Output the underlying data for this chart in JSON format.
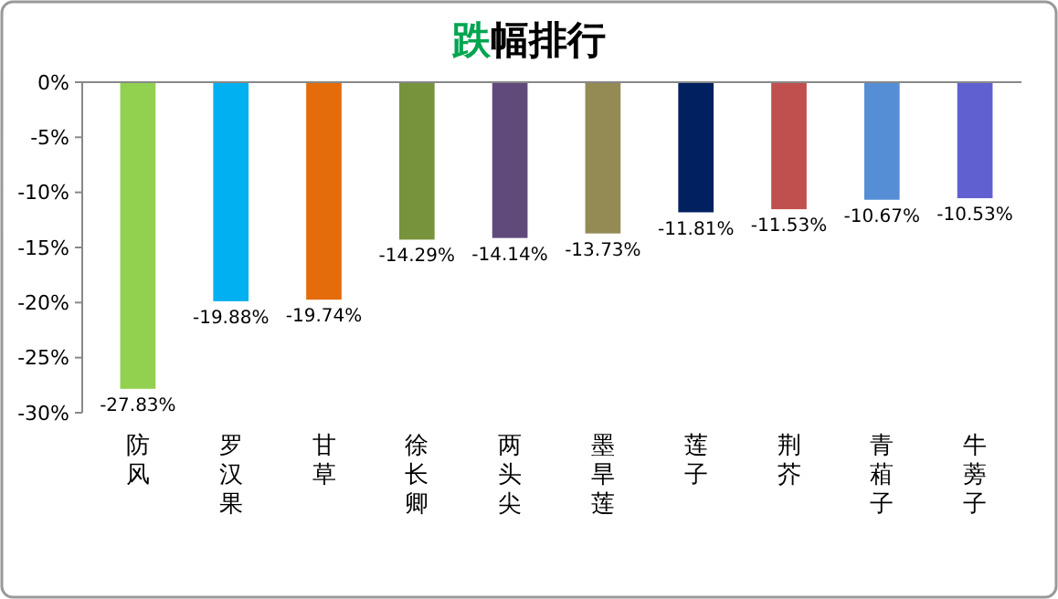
{
  "chart_data": {
    "type": "bar",
    "title": "跌幅排行",
    "categories": [
      "防风",
      "罗汉果",
      "甘草",
      "徐长卿",
      "两头尖",
      "墨旱莲",
      "莲子",
      "荆芥",
      "青葙子",
      "牛蒡子"
    ],
    "values": [
      -27.83,
      -19.88,
      -19.74,
      -14.29,
      -14.14,
      -13.73,
      -11.81,
      -11.53,
      -10.67,
      -10.53
    ],
    "colors": [
      "#92d050",
      "#00b0f0",
      "#e46c0a",
      "#77933c",
      "#604a7b",
      "#948a54",
      "#002060",
      "#c0504d",
      "#558ed5",
      "#6060d0"
    ],
    "value_labels": [
      "-27.83%",
      "-19.88%",
      "-19.74%",
      "-14.29%",
      "-14.14%",
      "-13.73%",
      "-11.81%",
      "-11.53%",
      "-10.67%",
      "-10.53%"
    ],
    "ylim": [
      -30,
      0
    ],
    "yticks": [
      {
        "value": 0,
        "label": "0%"
      },
      {
        "value": -5,
        "label": "-5%"
      },
      {
        "value": -10,
        "label": "-10%"
      },
      {
        "value": -15,
        "label": "-15%"
      },
      {
        "value": -20,
        "label": "-20%"
      },
      {
        "value": -25,
        "label": "-25%"
      },
      {
        "value": -30,
        "label": "-30%"
      }
    ],
    "grid": false
  }
}
